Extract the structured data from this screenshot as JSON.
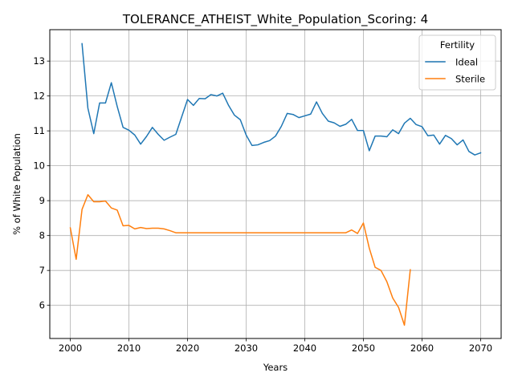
{
  "chart_data": {
    "type": "line",
    "title": "TOLERANCE_ATHEIST_White_Population_Scoring: 4",
    "xlabel": "Years",
    "ylabel": "% of White Population",
    "xlim": [
      1996.5,
      2073.5
    ],
    "ylim": [
      5.05,
      13.9
    ],
    "xticks": [
      2000,
      2010,
      2020,
      2030,
      2040,
      2050,
      2060,
      2070
    ],
    "yticks": [
      6,
      7,
      8,
      9,
      10,
      11,
      12,
      13
    ],
    "grid": true,
    "legend": {
      "title": "Fertility",
      "position": "top-right"
    },
    "series": [
      {
        "name": "Ideal",
        "color": "#1f77b4",
        "x": [
          2002,
          2003,
          2004,
          2005,
          2006,
          2007,
          2008,
          2009,
          2010,
          2011,
          2012,
          2013,
          2014,
          2015,
          2016,
          2017,
          2018,
          2019,
          2020,
          2021,
          2022,
          2023,
          2024,
          2025,
          2026,
          2027,
          2028,
          2029,
          2030,
          2031,
          2032,
          2033,
          2034,
          2035,
          2036,
          2037,
          2038,
          2039,
          2040,
          2041,
          2042,
          2043,
          2044,
          2045,
          2046,
          2047,
          2048,
          2049,
          2050,
          2051,
          2052,
          2053,
          2054,
          2055,
          2056,
          2057,
          2058,
          2059,
          2060,
          2061,
          2062,
          2063,
          2064,
          2065,
          2066,
          2067,
          2068,
          2069,
          2070
        ],
        "y": [
          13.5,
          11.65,
          10.92,
          11.8,
          11.8,
          12.38,
          11.7,
          11.1,
          11.02,
          10.88,
          10.62,
          10.84,
          11.1,
          10.9,
          10.73,
          10.82,
          10.9,
          11.4,
          11.9,
          11.73,
          11.93,
          11.92,
          12.04,
          12.0,
          12.08,
          11.73,
          11.45,
          11.32,
          10.88,
          10.58,
          10.6,
          10.67,
          10.72,
          10.85,
          11.13,
          11.5,
          11.47,
          11.38,
          11.43,
          11.48,
          11.83,
          11.5,
          11.28,
          11.23,
          11.13,
          11.19,
          11.33,
          11.01,
          11.01,
          10.43,
          10.85,
          10.85,
          10.83,
          11.03,
          10.92,
          11.22,
          11.36,
          11.18,
          11.12,
          10.86,
          10.88,
          10.62,
          10.87,
          10.78,
          10.6,
          10.74,
          10.41,
          10.31,
          10.37
        ]
      },
      {
        "name": "Sterile",
        "color": "#ff7f0e",
        "x": [
          2000,
          2001,
          2002,
          2003,
          2004,
          2005,
          2006,
          2007,
          2008,
          2009,
          2010,
          2011,
          2012,
          2013,
          2014,
          2015,
          2016,
          2017,
          2018,
          2019,
          2020,
          2021,
          2022,
          2023,
          2024,
          2025,
          2026,
          2027,
          2028,
          2029,
          2030,
          2031,
          2032,
          2033,
          2034,
          2035,
          2036,
          2037,
          2038,
          2039,
          2040,
          2041,
          2042,
          2043,
          2044,
          2045,
          2046,
          2047,
          2048,
          2049,
          2050,
          2051,
          2052,
          2053,
          2054,
          2055,
          2056,
          2057,
          2058
        ],
        "y": [
          8.22,
          7.32,
          8.75,
          9.17,
          8.97,
          8.97,
          8.99,
          8.79,
          8.73,
          8.28,
          8.29,
          8.19,
          8.23,
          8.2,
          8.21,
          8.21,
          8.19,
          8.14,
          8.08,
          8.08,
          8.08,
          8.08,
          8.08,
          8.08,
          8.08,
          8.08,
          8.08,
          8.08,
          8.08,
          8.08,
          8.08,
          8.08,
          8.08,
          8.08,
          8.08,
          8.08,
          8.08,
          8.08,
          8.08,
          8.08,
          8.08,
          8.08,
          8.08,
          8.08,
          8.08,
          8.08,
          8.08,
          8.08,
          8.16,
          8.06,
          8.36,
          7.64,
          7.09,
          7.0,
          6.68,
          6.21,
          5.94,
          5.43,
          7.02
        ]
      }
    ]
  }
}
